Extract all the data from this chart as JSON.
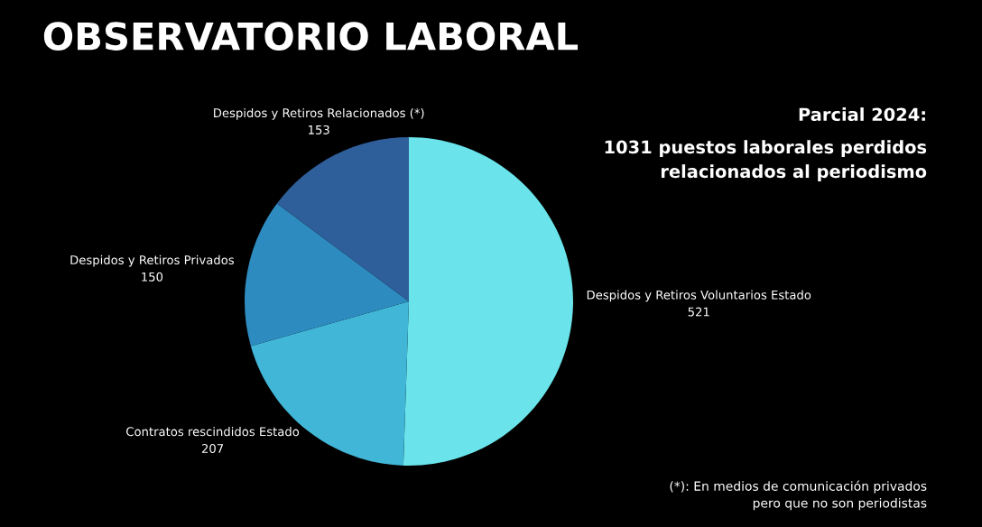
{
  "chart_data": {
    "type": "pie",
    "title": "OBSERVATORIO LABORAL",
    "categories": [
      "Despidos y Retiros Voluntarios Estado",
      "Contratos rescindidos Estado",
      "Despidos y Retiros Privados",
      "Despidos y Retiros Relacionados (*)"
    ],
    "values": [
      521,
      207,
      150,
      153
    ],
    "colors": [
      "#6ae4ea",
      "#41b6d6",
      "#2e8bbf",
      "#2e5f9a"
    ],
    "data_labels": true,
    "annotations": [
      "Parcial 2024:",
      "1031 puestos laborales perdidos\nrelacionados al periodismo",
      "(*): En medios de comunicación privados\npero que no son periodistas"
    ]
  }
}
